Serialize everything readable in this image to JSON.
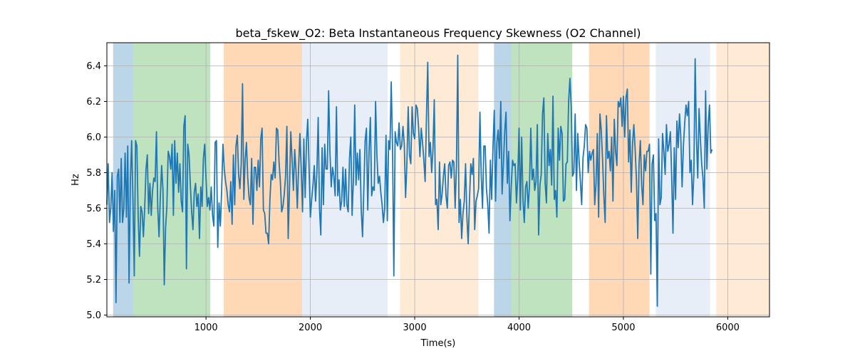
{
  "chart_data": {
    "type": "line",
    "title": "beta_fskew_O2: Beta Instantaneous Frequency Skewness (O2 Channel)",
    "xlabel": "Time(s)",
    "ylabel": "Hz",
    "xlim": [
      50,
      6400
    ],
    "ylim": [
      4.99,
      6.53
    ],
    "grid": true,
    "xticks": [
      1000,
      2000,
      3000,
      4000,
      5000,
      6000
    ],
    "yticks": [
      5.0,
      5.2,
      5.4,
      5.6,
      5.8,
      6.0,
      6.2,
      6.4
    ],
    "line_color": "#1f77b4",
    "bands": [
      {
        "start": 110,
        "end": 300,
        "color": "#1f77b4",
        "alpha": 0.3
      },
      {
        "start": 300,
        "end": 1040,
        "color": "#2ca02c",
        "alpha": 0.3
      },
      {
        "start": 1170,
        "end": 1920,
        "color": "#ff7f0e",
        "alpha": 0.3
      },
      {
        "start": 1920,
        "end": 2740,
        "color": "#aec7e8",
        "alpha": 0.3
      },
      {
        "start": 2860,
        "end": 3610,
        "color": "#ffbb78",
        "alpha": 0.3
      },
      {
        "start": 3760,
        "end": 3930,
        "color": "#1f77b4",
        "alpha": 0.3
      },
      {
        "start": 3930,
        "end": 4510,
        "color": "#2ca02c",
        "alpha": 0.3
      },
      {
        "start": 4670,
        "end": 5250,
        "color": "#ff7f0e",
        "alpha": 0.3
      },
      {
        "start": 5310,
        "end": 5830,
        "color": "#aec7e8",
        "alpha": 0.3
      },
      {
        "start": 5890,
        "end": 6400,
        "color": "#ffbb78",
        "alpha": 0.3
      }
    ],
    "series": [
      {
        "name": "beta_fskew_O2",
        "x_start": 50,
        "x_step": 12.5,
        "values": [
          5.62,
          5.85,
          5.52,
          5.6,
          5.8,
          5.47,
          5.7,
          5.07,
          5.78,
          5.82,
          5.52,
          5.88,
          5.52,
          5.6,
          5.91,
          5.55,
          5.95,
          5.18,
          5.75,
          5.98,
          5.64,
          5.22,
          5.98,
          5.95,
          5.55,
          5.33,
          5.61,
          5.58,
          5.44,
          5.6,
          5.82,
          5.9,
          5.57,
          5.74,
          5.56,
          5.7,
          5.77,
          5.75,
          6.03,
          5.6,
          5.44,
          5.67,
          5.84,
          5.7,
          5.17,
          5.49,
          5.61,
          5.92,
          5.89,
          5.82,
          5.96,
          5.56,
          5.98,
          5.74,
          5.91,
          5.69,
          5.85,
          5.64,
          5.58,
          6.06,
          6.12,
          5.26,
          5.96,
          5.9,
          5.73,
          5.58,
          5.48,
          5.69,
          5.74,
          5.61,
          5.68,
          5.43,
          5.72,
          5.61,
          5.88,
          5.96,
          5.77,
          5.61,
          5.66,
          5.59,
          5.72,
          5.56,
          5.5,
          5.97,
          5.98,
          5.38,
          5.63,
          5.5,
          5.7,
          5.96,
          5.82,
          5.75,
          5.7,
          5.62,
          5.58,
          5.75,
          5.51,
          5.9,
          5.62,
          5.95,
          6.01,
          5.79,
          5.71,
          5.85,
          6.3,
          5.65,
          5.87,
          5.97,
          5.77,
          5.66,
          5.62,
          5.88,
          5.51,
          5.83,
          5.83,
          5.7,
          5.87,
          5.72,
          5.99,
          6.05,
          5.59,
          5.57,
          5.46,
          5.46,
          5.4,
          5.65,
          5.79,
          5.76,
          5.86,
          5.77,
          6.05,
          6.04,
          5.86,
          5.75,
          5.58,
          5.61,
          5.68,
          5.78,
          6.06,
          5.43,
          5.71,
          6.03,
          5.87,
          5.7,
          5.93,
          5.81,
          5.6,
          5.83,
          6.02,
          5.82,
          5.58,
          5.99,
          5.66,
          5.97,
          6.1,
          5.83,
          5.55,
          5.65,
          5.73,
          5.84,
          5.64,
          5.8,
          6.11,
          5.6,
          5.45,
          5.94,
          5.62,
          5.96,
          5.82,
          5.82,
          6.26,
          5.92,
          5.72,
          5.83,
          5.78,
          5.67,
          6.17,
          5.67,
          5.76,
          5.59,
          5.64,
          5.83,
          5.61,
          5.82,
          5.62,
          5.58,
          5.88,
          6.0,
          5.56,
          5.76,
          6.18,
          5.73,
          5.91,
          5.76,
          5.93,
          5.59,
          5.44,
          5.71,
          5.98,
          6.05,
          5.59,
          5.92,
          6.11,
          5.67,
          5.72,
          5.7,
          6.2,
          5.9,
          5.74,
          5.78,
          5.69,
          5.62,
          5.52,
          5.6,
          6.01,
          5.53,
          5.98,
          5.93,
          6.31,
          5.94,
          5.22,
          6.03,
          5.97,
          5.95,
          6.08,
          5.93,
          5.95,
          6.06,
          5.96,
          5.66,
          5.85,
          6.17,
          5.9,
          5.85,
          6.17,
          6.02,
          5.99,
          6.18,
          6.16,
          6.05,
          5.89,
          6.05,
          5.97,
          5.87,
          5.75,
          6.11,
          6.42,
          5.89,
          5.97,
          5.8,
          5.93,
          6.21,
          5.62,
          5.65,
          5.48,
          5.86,
          5.62,
          5.68,
          5.78,
          5.85,
          5.67,
          5.6,
          5.84,
          5.86,
          5.77,
          5.87,
          5.86,
          5.6,
          5.84,
          6.46,
          5.52,
          5.65,
          5.43,
          5.57,
          5.64,
          5.85,
          5.55,
          5.4,
          5.65,
          5.85,
          5.79,
          5.88,
          5.48,
          5.64,
          5.67,
          5.71,
          6.14,
          5.78,
          5.6,
          5.95,
          5.95,
          5.71,
          5.62,
          5.46,
          5.87,
          5.65,
          5.94,
          6.15,
          5.64,
          5.97,
          6.04,
          5.88,
          6.2,
          5.68,
          5.85,
          6.03,
          6.14,
          5.74,
          5.92,
          5.53,
          5.72,
          5.87,
          5.84,
          5.85,
          5.63,
          5.77,
          6.05,
          5.59,
          6.0,
          5.65,
          5.52,
          5.72,
          5.75,
          5.6,
          5.73,
          6.05,
          5.76,
          5.82,
          5.7,
          5.75,
          6.07,
          5.45,
          5.73,
          5.79,
          6.13,
          6.22,
          5.74,
          5.63,
          6.02,
          5.84,
          5.93,
          5.73,
          6.23,
          5.65,
          5.7,
          5.55,
          6.05,
          5.87,
          6.06,
          6.02,
          5.64,
          5.65,
          5.85,
          5.86,
          6.2,
          6.33,
          6.17,
          5.78,
          5.8,
          6.13,
          5.7,
          6.02,
          5.87,
          5.75,
          5.62,
          5.88,
          5.95,
          6.07,
          6.05,
          5.8,
          5.92,
          5.87,
          5.91,
          5.93,
          5.62,
          5.74,
          6.02,
          5.55,
          6.13,
          6.04,
          5.88,
          5.67,
          5.52,
          6.12,
          5.88,
          5.92,
          5.81,
          6.0,
          5.64,
          6.1,
          5.92,
          5.84,
          6.2,
          6.17,
          6.22,
          6.06,
          6.23,
          6.0,
          6.22,
          6.27,
          5.86,
          6.04,
          5.69,
          5.96,
          6.07,
          5.93,
          5.76,
          5.43,
          5.85,
          5.98,
          5.73,
          5.62,
          5.9,
          5.81,
          5.92,
          5.92,
          5.96,
          5.23,
          5.85,
          5.9,
          5.53,
          5.57,
          5.05,
          5.99,
          5.62,
          5.66,
          6.02,
          5.92,
          5.79,
          6.07,
          5.92,
          5.96,
          6.03,
          5.78,
          5.46,
          5.94,
          5.65,
          6.09,
          5.94,
          6.13,
          6.0,
          5.72,
          5.95,
          6.08,
          6.18,
          6.12,
          6.2,
          5.8,
          5.87,
          5.62,
          5.79,
          6.44,
          5.99,
          5.77,
          6.16,
          5.99,
          5.85,
          5.77,
          5.6,
          6.26,
          5.82,
          6.07,
          6.18,
          5.91,
          5.93
        ]
      }
    ]
  }
}
